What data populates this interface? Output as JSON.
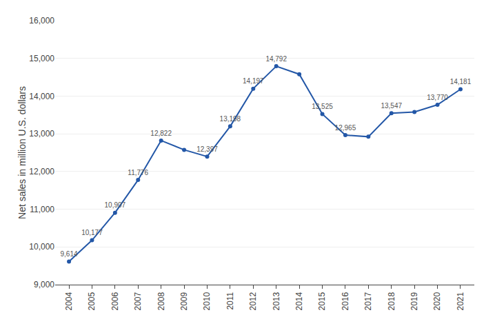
{
  "chart_data": {
    "type": "line",
    "x": [
      2004,
      2005,
      2006,
      2007,
      2008,
      2009,
      2010,
      2011,
      2012,
      2013,
      2014,
      2015,
      2016,
      2017,
      2018,
      2019,
      2020,
      2021
    ],
    "values": [
      9614,
      10177,
      10907,
      11776,
      12822,
      12575,
      12397,
      13198,
      14197,
      14792,
      14580,
      13525,
      12965,
      12923,
      13547,
      13578,
      13770,
      14181
    ],
    "value_labels": [
      "9,614",
      "10,177",
      "10,907",
      "11,776",
      "12,822",
      null,
      "12,397",
      "13,198",
      "14,197",
      "14,792",
      null,
      "13,525",
      "12,965",
      null,
      "13,547",
      null,
      "13,770",
      "14,181"
    ],
    "data_labels": true,
    "color": "#2357a7",
    "marker": "circle",
    "ylabel": "Net sales in million U.S. dollars",
    "xlim": [
      2003.4,
      2021.6
    ],
    "xticks": [
      2004,
      2005,
      2006,
      2007,
      2008,
      2009,
      2010,
      2011,
      2012,
      2013,
      2014,
      2015,
      2016,
      2017,
      2018,
      2019,
      2020,
      2021
    ],
    "ylim": [
      9000,
      16000
    ],
    "yticks": [
      {
        "value": 9000,
        "label": "9,000"
      },
      {
        "value": 10000,
        "label": "10,000"
      },
      {
        "value": 11000,
        "label": "11,000"
      },
      {
        "value": 12000,
        "label": "12,000"
      },
      {
        "value": 13000,
        "label": "13,000"
      },
      {
        "value": 14000,
        "label": "14,000"
      },
      {
        "value": 15000,
        "label": "15,000"
      },
      {
        "value": 16000,
        "label": "16,000"
      }
    ],
    "grid": true
  }
}
